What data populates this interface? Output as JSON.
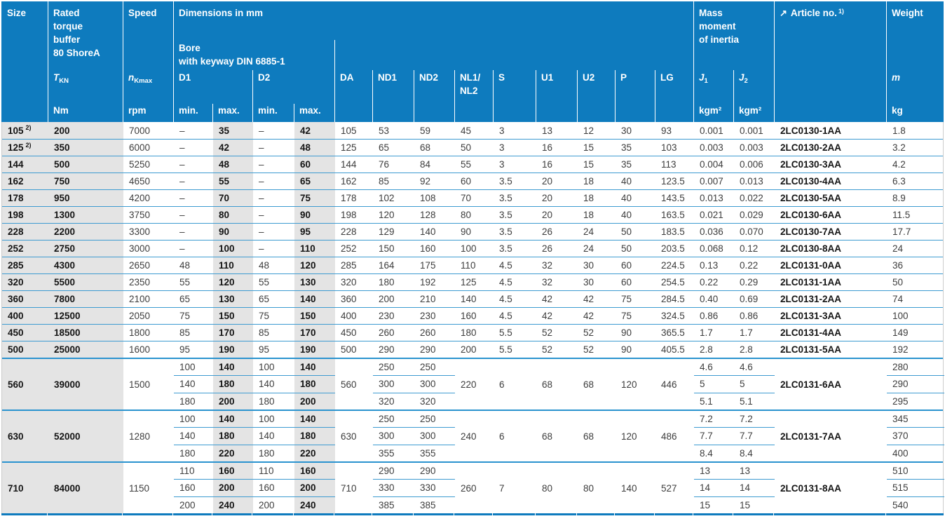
{
  "colors": {
    "header_blue": "#0e7bbe",
    "row_line_blue": "#3d9bd1",
    "shade_gray": "#e4e4e4",
    "bold_text": "#141414",
    "regular_text": "#3d3d3d"
  },
  "table": {
    "header": {
      "size": "Size",
      "rated_torque": {
        "lines": [
          "Rated",
          "torque",
          "buffer",
          "80 ShoreA"
        ],
        "symbol": "T",
        "symbol_sub": "KN",
        "unit": "Nm"
      },
      "speed": {
        "title": "Speed",
        "symbol": "n",
        "symbol_sub": "Kmax",
        "unit": "rpm"
      },
      "dimensions": {
        "title": "Dimensions in mm",
        "bore_lines": [
          "Bore",
          "with keyway DIN 6885-1"
        ],
        "d1": "D1",
        "d2": "D2",
        "min": "min.",
        "max": "max.",
        "da": "DA",
        "nd1": "ND1",
        "nd2": "ND2",
        "nl_line1": "NL1/",
        "nl_line2": "NL2",
        "s": "S",
        "u1": "U1",
        "u2": "U2",
        "p": "P",
        "lg": "LG"
      },
      "inertia": {
        "lines": [
          "Mass",
          "moment",
          "of inertia"
        ],
        "j": "J",
        "j1_sub": "1",
        "j2_sub": "2",
        "unit": "kgm²"
      },
      "article": {
        "arrow": "↗",
        "title": "Article no.",
        "sup": "1)"
      },
      "weight": {
        "title": "Weight",
        "symbol": "m",
        "unit": "kg"
      }
    },
    "groups": [
      {
        "size": "105",
        "size_sup": "2)",
        "torque": "200",
        "speed": "7000",
        "d1min": "–",
        "d1max": "35",
        "d2min": "–",
        "d2max": "42",
        "da": "105",
        "nd1": "53",
        "nd2": "59",
        "nl": "45",
        "s": "3",
        "u1": "13",
        "u2": "12",
        "p": "30",
        "lg": "93",
        "j1": "0.001",
        "j2": "0.001",
        "article": "2LC0130-1AA",
        "weight": "1.8"
      },
      {
        "size": "125",
        "size_sup": "2)",
        "torque": "350",
        "speed": "6000",
        "d1min": "–",
        "d1max": "42",
        "d2min": "–",
        "d2max": "48",
        "da": "125",
        "nd1": "65",
        "nd2": "68",
        "nl": "50",
        "s": "3",
        "u1": "16",
        "u2": "15",
        "p": "35",
        "lg": "103",
        "j1": "0.003",
        "j2": "0.003",
        "article": "2LC0130-2AA",
        "weight": "3.2"
      },
      {
        "size": "144",
        "torque": "500",
        "speed": "5250",
        "d1min": "–",
        "d1max": "48",
        "d2min": "–",
        "d2max": "60",
        "da": "144",
        "nd1": "76",
        "nd2": "84",
        "nl": "55",
        "s": "3",
        "u1": "16",
        "u2": "15",
        "p": "35",
        "lg": "113",
        "j1": "0.004",
        "j2": "0.006",
        "article": "2LC0130-3AA",
        "weight": "4.2"
      },
      {
        "size": "162",
        "torque": "750",
        "speed": "4650",
        "d1min": "–",
        "d1max": "55",
        "d2min": "–",
        "d2max": "65",
        "da": "162",
        "nd1": "85",
        "nd2": "92",
        "nl": "60",
        "s": "3.5",
        "u1": "20",
        "u2": "18",
        "p": "40",
        "lg": "123.5",
        "j1": "0.007",
        "j2": "0.013",
        "article": "2LC0130-4AA",
        "weight": "6.3"
      },
      {
        "size": "178",
        "torque": "950",
        "speed": "4200",
        "d1min": "–",
        "d1max": "70",
        "d2min": "–",
        "d2max": "75",
        "da": "178",
        "nd1": "102",
        "nd2": "108",
        "nl": "70",
        "s": "3.5",
        "u1": "20",
        "u2": "18",
        "p": "40",
        "lg": "143.5",
        "j1": "0.013",
        "j2": "0.022",
        "article": "2LC0130-5AA",
        "weight": "8.9"
      },
      {
        "size": "198",
        "torque": "1300",
        "speed": "3750",
        "d1min": "–",
        "d1max": "80",
        "d2min": "–",
        "d2max": "90",
        "da": "198",
        "nd1": "120",
        "nd2": "128",
        "nl": "80",
        "s": "3.5",
        "u1": "20",
        "u2": "18",
        "p": "40",
        "lg": "163.5",
        "j1": "0.021",
        "j2": "0.029",
        "article": "2LC0130-6AA",
        "weight": "11.5"
      },
      {
        "size": "228",
        "torque": "2200",
        "speed": "3300",
        "d1min": "–",
        "d1max": "90",
        "d2min": "–",
        "d2max": "95",
        "da": "228",
        "nd1": "129",
        "nd2": "140",
        "nl": "90",
        "s": "3.5",
        "u1": "26",
        "u2": "24",
        "p": "50",
        "lg": "183.5",
        "j1": "0.036",
        "j2": "0.070",
        "article": "2LC0130-7AA",
        "weight": "17.7"
      },
      {
        "size": "252",
        "torque": "2750",
        "speed": "3000",
        "d1min": "–",
        "d1max": "100",
        "d2min": "–",
        "d2max": "110",
        "da": "252",
        "nd1": "150",
        "nd2": "160",
        "nl": "100",
        "s": "3.5",
        "u1": "26",
        "u2": "24",
        "p": "50",
        "lg": "203.5",
        "j1": "0.068",
        "j2": "0.12",
        "article": "2LC0130-8AA",
        "weight": "24"
      },
      {
        "size": "285",
        "torque": "4300",
        "speed": "2650",
        "d1min": "48",
        "d1max": "110",
        "d2min": "48",
        "d2max": "120",
        "da": "285",
        "nd1": "164",
        "nd2": "175",
        "nl": "110",
        "s": "4.5",
        "u1": "32",
        "u2": "30",
        "p": "60",
        "lg": "224.5",
        "j1": "0.13",
        "j2": "0.22",
        "article": "2LC0131-0AA",
        "weight": "36"
      },
      {
        "size": "320",
        "torque": "5500",
        "speed": "2350",
        "d1min": "55",
        "d1max": "120",
        "d2min": "55",
        "d2max": "130",
        "da": "320",
        "nd1": "180",
        "nd2": "192",
        "nl": "125",
        "s": "4.5",
        "u1": "32",
        "u2": "30",
        "p": "60",
        "lg": "254.5",
        "j1": "0.22",
        "j2": "0.29",
        "article": "2LC0131-1AA",
        "weight": "50"
      },
      {
        "size": "360",
        "torque": "7800",
        "speed": "2100",
        "d1min": "65",
        "d1max": "130",
        "d2min": "65",
        "d2max": "140",
        "da": "360",
        "nd1": "200",
        "nd2": "210",
        "nl": "140",
        "s": "4.5",
        "u1": "42",
        "u2": "42",
        "p": "75",
        "lg": "284.5",
        "j1": "0.40",
        "j2": "0.69",
        "article": "2LC0131-2AA",
        "weight": "74"
      },
      {
        "size": "400",
        "torque": "12500",
        "speed": "2050",
        "d1min": "75",
        "d1max": "150",
        "d2min": "75",
        "d2max": "150",
        "da": "400",
        "nd1": "230",
        "nd2": "230",
        "nl": "160",
        "s": "4.5",
        "u1": "42",
        "u2": "42",
        "p": "75",
        "lg": "324.5",
        "j1": "0.86",
        "j2": "0.86",
        "article": "2LC0131-3AA",
        "weight": "100"
      },
      {
        "size": "450",
        "torque": "18500",
        "speed": "1800",
        "d1min": "85",
        "d1max": "170",
        "d2min": "85",
        "d2max": "170",
        "da": "450",
        "nd1": "260",
        "nd2": "260",
        "nl": "180",
        "s": "5.5",
        "u1": "52",
        "u2": "52",
        "p": "90",
        "lg": "365.5",
        "j1": "1.7",
        "j2": "1.7",
        "article": "2LC0131-4AA",
        "weight": "149"
      },
      {
        "size": "500",
        "torque": "25000",
        "speed": "1600",
        "d1min": "95",
        "d1max": "190",
        "d2min": "95",
        "d2max": "190",
        "da": "500",
        "nd1": "290",
        "nd2": "290",
        "nl": "200",
        "s": "5.5",
        "u1": "52",
        "u2": "52",
        "p": "90",
        "lg": "405.5",
        "j1": "2.8",
        "j2": "2.8",
        "article": "2LC0131-5AA",
        "weight": "192"
      },
      {
        "size": "560",
        "torque": "39000",
        "speed": "1500",
        "da": "560",
        "nl": "220",
        "s": "6",
        "u1": "68",
        "u2": "68",
        "p": "120",
        "lg": "446",
        "article": "2LC0131-6AA",
        "rows": [
          {
            "d1min": "100",
            "d1max": "140",
            "d2min": "100",
            "d2max": "140",
            "nd1": "250",
            "nd2": "250",
            "j1": "4.6",
            "j2": "4.6",
            "weight": "280"
          },
          {
            "d1min": "140",
            "d1max": "180",
            "d2min": "140",
            "d2max": "180",
            "nd1": "300",
            "nd2": "300",
            "j1": "5",
            "j2": "5",
            "weight": "290"
          },
          {
            "d1min": "180",
            "d1max": "200",
            "d2min": "180",
            "d2max": "200",
            "nd1": "320",
            "nd2": "320",
            "j1": "5.1",
            "j2": "5.1",
            "weight": "295"
          }
        ]
      },
      {
        "size": "630",
        "torque": "52000",
        "speed": "1280",
        "da": "630",
        "nl": "240",
        "s": "6",
        "u1": "68",
        "u2": "68",
        "p": "120",
        "lg": "486",
        "article": "2LC0131-7AA",
        "rows": [
          {
            "d1min": "100",
            "d1max": "140",
            "d2min": "100",
            "d2max": "140",
            "nd1": "250",
            "nd2": "250",
            "j1": "7.2",
            "j2": "7.2",
            "weight": "345"
          },
          {
            "d1min": "140",
            "d1max": "180",
            "d2min": "140",
            "d2max": "180",
            "nd1": "300",
            "nd2": "300",
            "j1": "7.7",
            "j2": "7.7",
            "weight": "370"
          },
          {
            "d1min": "180",
            "d1max": "220",
            "d2min": "180",
            "d2max": "220",
            "nd1": "355",
            "nd2": "355",
            "j1": "8.4",
            "j2": "8.4",
            "weight": "400"
          }
        ]
      },
      {
        "size": "710",
        "torque": "84000",
        "speed": "1150",
        "da": "710",
        "nl": "260",
        "s": "7",
        "u1": "80",
        "u2": "80",
        "p": "140",
        "lg": "527",
        "article": "2LC0131-8AA",
        "rows": [
          {
            "d1min": "110",
            "d1max": "160",
            "d2min": "110",
            "d2max": "160",
            "nd1": "290",
            "nd2": "290",
            "j1": "13",
            "j2": "13",
            "weight": "510"
          },
          {
            "d1min": "160",
            "d1max": "200",
            "d2min": "160",
            "d2max": "200",
            "nd1": "330",
            "nd2": "330",
            "j1": "14",
            "j2": "14",
            "weight": "515"
          },
          {
            "d1min": "200",
            "d1max": "240",
            "d2min": "200",
            "d2max": "240",
            "nd1": "385",
            "nd2": "385",
            "j1": "15",
            "j2": "15",
            "weight": "540"
          }
        ]
      }
    ]
  }
}
